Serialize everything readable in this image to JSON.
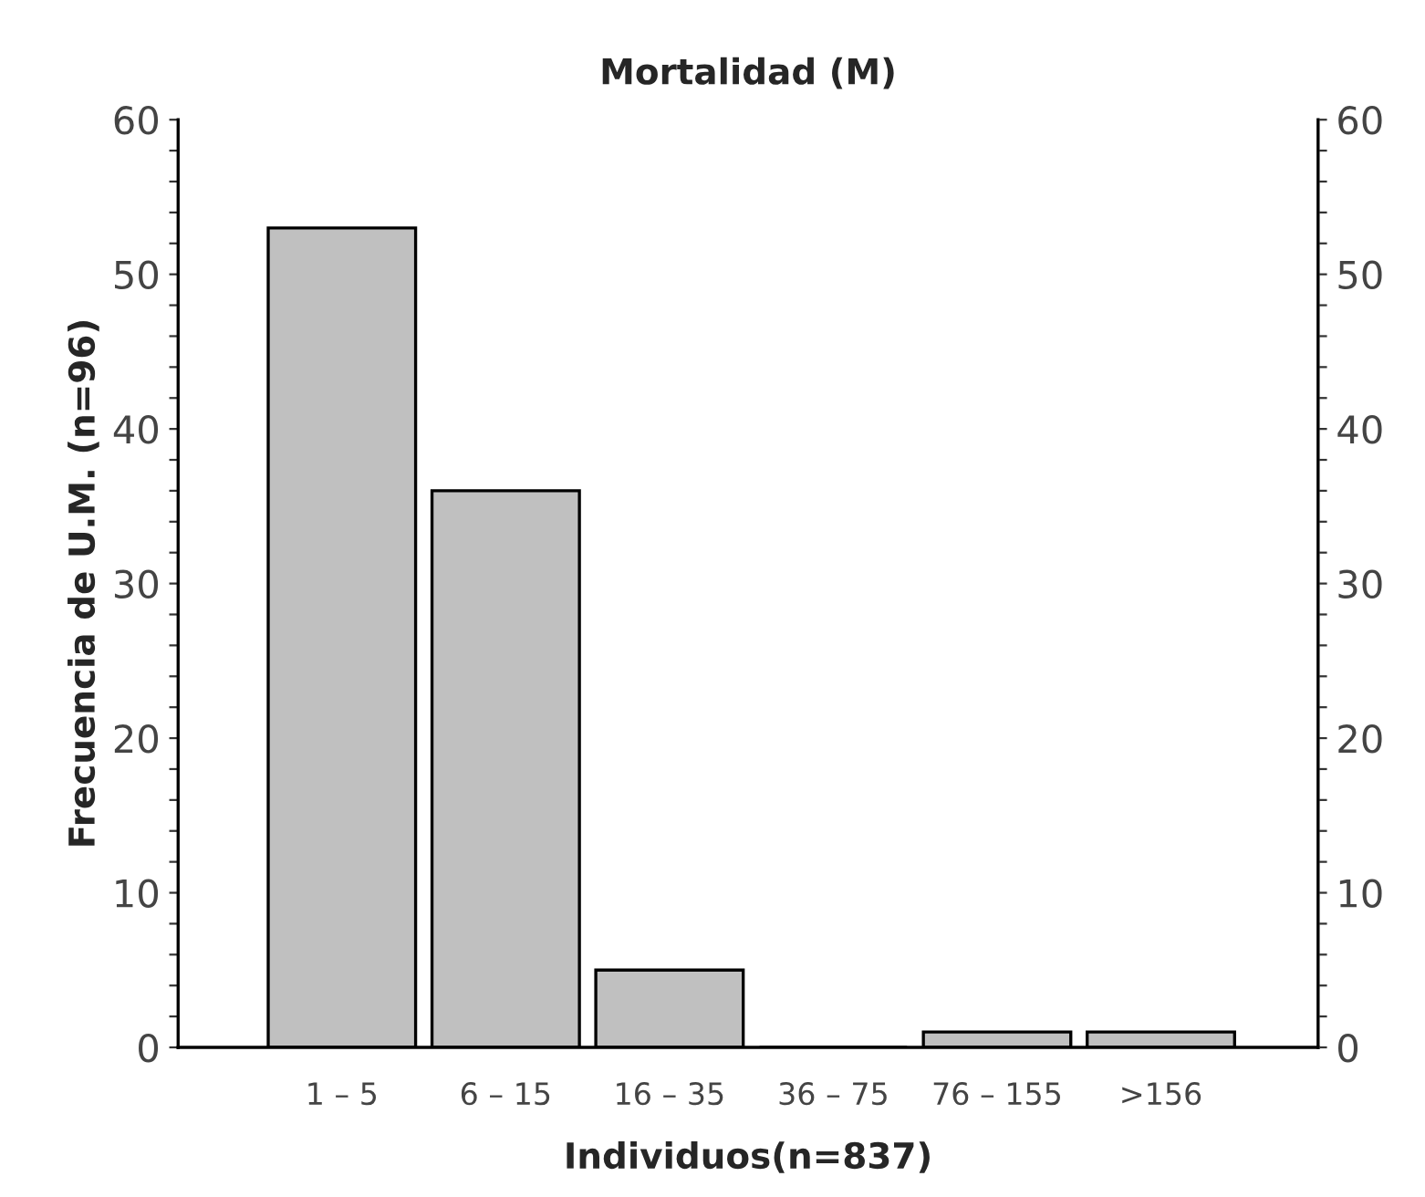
{
  "chart_data": {
    "type": "bar",
    "title": "Mortalidad (M)",
    "xlabel": "Individuos(n=837)",
    "ylabel": "Frecuencia de U.M. (n=96)",
    "categories": [
      "1 – 5",
      "6 – 15",
      "16 – 35",
      "36 – 75",
      "76 – 155",
      ">156"
    ],
    "values": [
      53,
      36,
      5,
      0,
      1,
      1
    ],
    "color": "#c0c0c0",
    "ylim": [
      0,
      60
    ],
    "yticks": [
      0,
      {
        "value": 2,
        "label": null
      },
      {
        "value": 4,
        "label": null
      },
      {
        "value": 6,
        "label": null
      },
      {
        "value": 8,
        "label": null
      },
      10,
      {
        "value": 12,
        "label": null
      },
      {
        "value": 14,
        "label": null
      },
      {
        "value": 16,
        "label": null
      },
      {
        "value": 18,
        "label": null
      },
      20,
      {
        "value": 22,
        "label": null
      },
      {
        "value": 24,
        "label": null
      },
      {
        "value": 26,
        "label": null
      },
      {
        "value": 28,
        "label": null
      },
      30,
      {
        "value": 32,
        "label": null
      },
      {
        "value": 34,
        "label": null
      },
      {
        "value": 36,
        "label": null
      },
      {
        "value": 38,
        "label": null
      },
      40,
      {
        "value": 42,
        "label": null
      },
      {
        "value": 44,
        "label": null
      },
      {
        "value": 46,
        "label": null
      },
      {
        "value": 48,
        "label": null
      },
      50,
      {
        "value": 52,
        "label": null
      },
      {
        "value": 54,
        "label": null
      },
      {
        "value": 56,
        "label": null
      },
      {
        "value": 58,
        "label": null
      },
      60
    ],
    "y2lim": [
      0,
      60
    ],
    "y2ticks": [
      0,
      {
        "value": 2,
        "label": null
      },
      {
        "value": 4,
        "label": null
      },
      {
        "value": 6,
        "label": null
      },
      {
        "value": 8,
        "label": null
      },
      10,
      {
        "value": 12,
        "label": null
      },
      {
        "value": 14,
        "label": null
      },
      {
        "value": 16,
        "label": null
      },
      {
        "value": 18,
        "label": null
      },
      20,
      {
        "value": 22,
        "label": null
      },
      {
        "value": 24,
        "label": null
      },
      {
        "value": 26,
        "label": null
      },
      {
        "value": 28,
        "label": null
      },
      30,
      {
        "value": 32,
        "label": null
      },
      {
        "value": 34,
        "label": null
      },
      {
        "value": 36,
        "label": null
      },
      {
        "value": 38,
        "label": null
      },
      40,
      {
        "value": 42,
        "label": null
      },
      {
        "value": 44,
        "label": null
      },
      {
        "value": 46,
        "label": null
      },
      {
        "value": 48,
        "label": null
      },
      50,
      {
        "value": 52,
        "label": null
      },
      {
        "value": 54,
        "label": null
      },
      {
        "value": 56,
        "label": null
      },
      {
        "value": 58,
        "label": null
      },
      60
    ],
    "grid": false,
    "legend": false
  }
}
